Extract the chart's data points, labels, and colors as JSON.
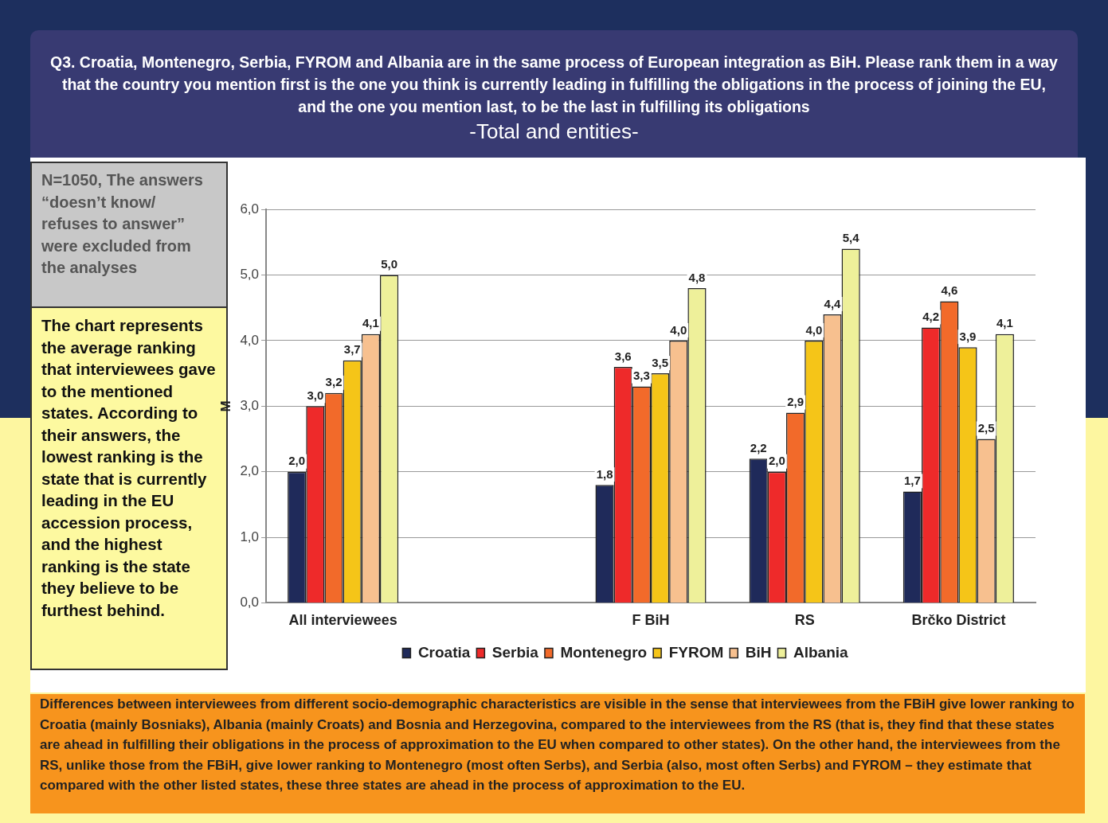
{
  "chart_data": {
    "type": "bar",
    "title": "Q3. Croatia, Montenegro, Serbia, FYROM and Albania are in the same process of European integration as BiH. Please rank them in a way that the country you mention first is the one you think is currently leading in fulfilling the obligations in the process of joining the EU, and the one you mention last, to be the last in fulfilling its obligations",
    "subtitle": "-Total and entities-",
    "ylabel": "M",
    "categories": [
      "All interviewees",
      null,
      "F BiH",
      "RS",
      "Brčko District"
    ],
    "series": [
      {
        "name": "Croatia",
        "color": "#1f2a5a",
        "values": [
          2.0,
          null,
          1.8,
          2.2,
          1.7
        ],
        "value_labels": [
          "2,0",
          null,
          "1,8",
          "2,2",
          "1,7"
        ]
      },
      {
        "name": "Serbia",
        "color": "#ee2a2a",
        "values": [
          3.0,
          null,
          3.6,
          2.0,
          4.2
        ],
        "value_labels": [
          "3,0",
          null,
          "3,6",
          "2,0",
          "4,2"
        ]
      },
      {
        "name": "Montenegro",
        "color": "#f26a2a",
        "values": [
          3.2,
          null,
          3.3,
          2.9,
          4.6
        ],
        "value_labels": [
          "3,2",
          null,
          "3,3",
          "2,9",
          "4,6"
        ]
      },
      {
        "name": "FYROM",
        "color": "#f5c518",
        "values": [
          3.7,
          null,
          3.5,
          4.0,
          3.9
        ],
        "value_labels": [
          "3,7",
          null,
          "3,5",
          "4,0",
          "3,9"
        ]
      },
      {
        "name": "BiH",
        "color": "#f7c08f",
        "values": [
          4.1,
          null,
          4.0,
          4.4,
          2.5
        ],
        "value_labels": [
          "4,1",
          null,
          "4,0",
          "4,4",
          "2,5"
        ]
      },
      {
        "name": "Albania",
        "color": "#eef09a",
        "values": [
          5.0,
          null,
          4.8,
          5.4,
          4.1
        ],
        "value_labels": [
          "5,0",
          null,
          "4,8",
          "5,4",
          "4,1"
        ]
      }
    ],
    "ylim": [
      0,
      6
    ],
    "yticks": [
      {
        "value": 0,
        "label": "0,0"
      },
      {
        "value": 1,
        "label": "1,0"
      },
      {
        "value": 2,
        "label": "2,0"
      },
      {
        "value": 3,
        "label": "3,0"
      },
      {
        "value": 4,
        "label": "4,0"
      },
      {
        "value": 5,
        "label": "5,0"
      },
      {
        "value": 6,
        "label": "6,0"
      }
    ],
    "grid": "y",
    "legend": "bottom",
    "annotations": [
      "N=1050, The answers “doesn’t know/ refuses to answer” were excluded from the analyses",
      "The chart represents the average ranking that interviewees gave to the mentioned states. According to their answers, the lowest ranking is the state that is currently leading in the EU accession process, and the highest ranking is the state they believe to be furthest behind.",
      "Differences between interviewees from different socio-demographic characteristics are visible in the sense that interviewees from the FBiH give lower ranking to Croatia (mainly Bosniaks), Albania (mainly Croats) and Bosnia and Herzegovina, compared to the interviewees from the RS (that is, they find that these states are ahead in fulfilling their obligations in the process of approximation to the EU when compared to other states). On the other hand, the interviewees from the RS, unlike those from the FBiH, give lower ranking to Montenegro (most often Serbs), and Serbia (also, most often Serbs) and FYROM – they estimate that compared with the other listed states, these three states are ahead in the process of approximation to the EU."
    ]
  }
}
